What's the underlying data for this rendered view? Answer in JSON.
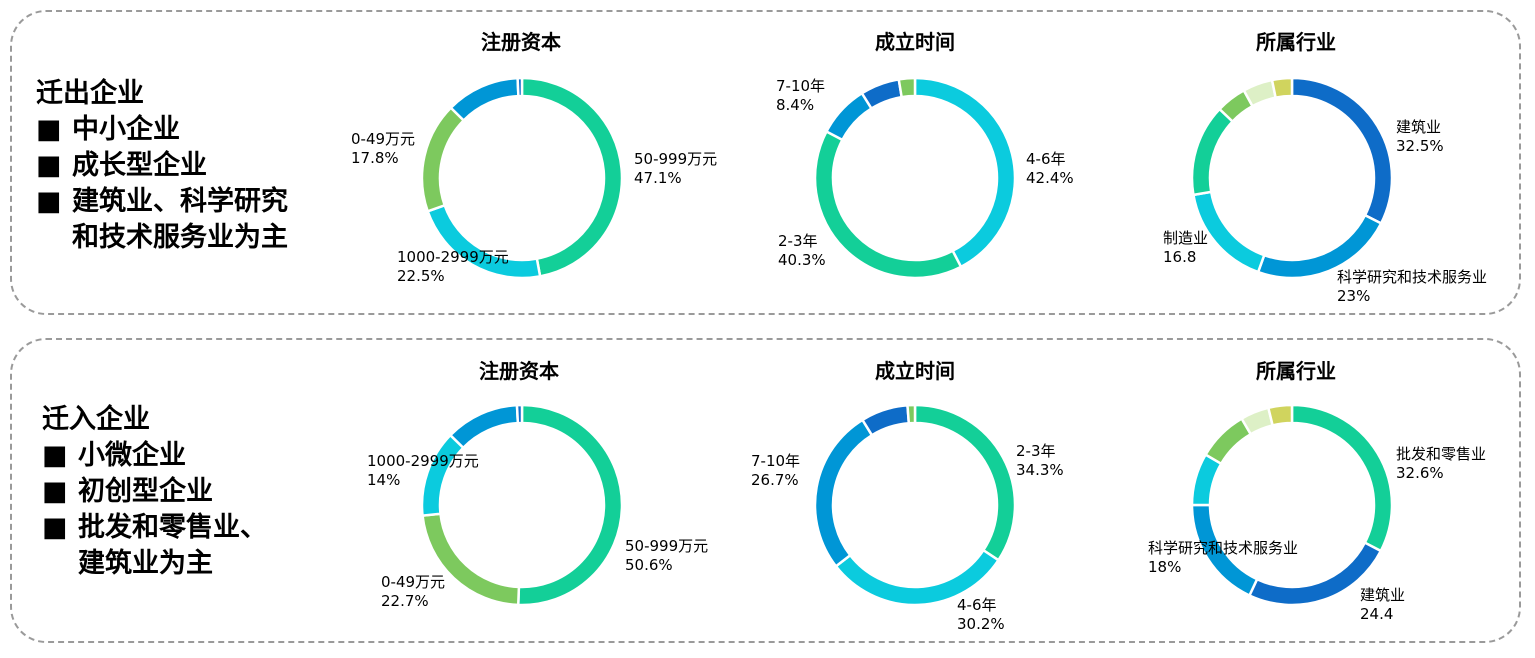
{
  "colors": {
    "green": "#13cf98",
    "cyan": "#0bcbde",
    "blue": "#0096d6",
    "darkblue": "#0e6cc8",
    "lightgreen": "#7dc95e",
    "pale": "#ddf0c6",
    "yellow": "#d0d45e"
  },
  "outflow": {
    "heading": "迁出企业",
    "bullets": [
      {
        "text": "中小企业"
      },
      {
        "text": "成长型企业"
      },
      {
        "text": "建筑业、科学研究",
        "cont": "和技术服务业为主"
      }
    ]
  },
  "inflow": {
    "heading": "迁入企业",
    "bullets": [
      {
        "text": "小微企业"
      },
      {
        "text": "初创型企业"
      },
      {
        "text": "批发和零售业、",
        "cont": "建筑业为主"
      }
    ]
  },
  "chart_data": [
    {
      "group": "迁出企业",
      "type": "pie",
      "title": "注册资本",
      "slices": [
        {
          "name": "50-999万元",
          "value": "47.1%",
          "color": "#13cf98"
        },
        {
          "name": "1000-2999万元",
          "value": "22.5%",
          "color": "#0bcbde"
        },
        {
          "name": "0-49万元",
          "value": "17.8%",
          "color": "#7dc95e"
        },
        {
          "name": "",
          "value": "11.9",
          "color": "#0096d6"
        },
        {
          "name": "",
          "value": "0.7",
          "color": "#0e6cc8"
        }
      ]
    },
    {
      "group": "迁出企业",
      "type": "pie",
      "title": "成立时间",
      "slices": [
        {
          "name": "4-6年",
          "value": "42.4%",
          "color": "#0bcbde"
        },
        {
          "name": "2-3年",
          "value": "40.3%",
          "color": "#13cf98"
        },
        {
          "name": "7-10年",
          "value": "8.4%",
          "color": "#0096d6"
        },
        {
          "name": "",
          "value": "6.3",
          "color": "#0e6cc8"
        },
        {
          "name": "",
          "value": "2.6",
          "color": "#7dc95e"
        }
      ]
    },
    {
      "group": "迁出企业",
      "type": "pie",
      "title": "所属行业",
      "slices": [
        {
          "name": "建筑业",
          "value": "32.5%",
          "color": "#0e6cc8"
        },
        {
          "name": "科学研究和技术服务业",
          "value": "23%",
          "color": "#0096d6"
        },
        {
          "name": "制造业",
          "value": "16.8",
          "color": "#0bcbde"
        },
        {
          "name": "",
          "value": "14.8",
          "color": "#13cf98"
        },
        {
          "name": "",
          "value": "4.9",
          "color": "#7dc95e"
        },
        {
          "name": "",
          "value": "4.8",
          "color": "#ddf0c6"
        },
        {
          "name": "",
          "value": "3.2",
          "color": "#d0d45e"
        }
      ]
    },
    {
      "group": "迁入企业",
      "type": "pie",
      "title": "注册资本",
      "slices": [
        {
          "name": "50-999万元",
          "value": "50.6%",
          "color": "#13cf98"
        },
        {
          "name": "0-49万元",
          "value": "22.7%",
          "color": "#7dc95e"
        },
        {
          "name": "1000-2999万元",
          "value": "14%",
          "color": "#0bcbde"
        },
        {
          "name": "",
          "value": "11.9",
          "color": "#0096d6"
        },
        {
          "name": "",
          "value": "0.8",
          "color": "#0e6cc8"
        }
      ]
    },
    {
      "group": "迁入企业",
      "type": "pie",
      "title": "成立时间",
      "slices": [
        {
          "name": "2-3年",
          "value": "34.3%",
          "color": "#13cf98"
        },
        {
          "name": "4-6年",
          "value": "30.2%",
          "color": "#0bcbde"
        },
        {
          "name": "7-10年",
          "value": "26.7%",
          "color": "#0096d6"
        },
        {
          "name": "",
          "value": "7.6",
          "color": "#0e6cc8"
        },
        {
          "name": "",
          "value": "1.2",
          "color": "#7dc95e"
        }
      ]
    },
    {
      "group": "迁入企业",
      "type": "pie",
      "title": "所属行业",
      "slices": [
        {
          "name": "批发和零售业",
          "value": "32.6%",
          "color": "#13cf98"
        },
        {
          "name": "建筑业",
          "value": "24.4",
          "color": "#0e6cc8"
        },
        {
          "name": "科学研究和技术服务业",
          "value": "18%",
          "color": "#0096d6"
        },
        {
          "name": "",
          "value": "8.4",
          "color": "#0bcbde"
        },
        {
          "name": "",
          "value": "8.2",
          "color": "#7dc95e"
        },
        {
          "name": "",
          "value": "4.6",
          "color": "#ddf0c6"
        },
        {
          "name": "",
          "value": "3.8",
          "color": "#d0d45e"
        }
      ]
    }
  ]
}
